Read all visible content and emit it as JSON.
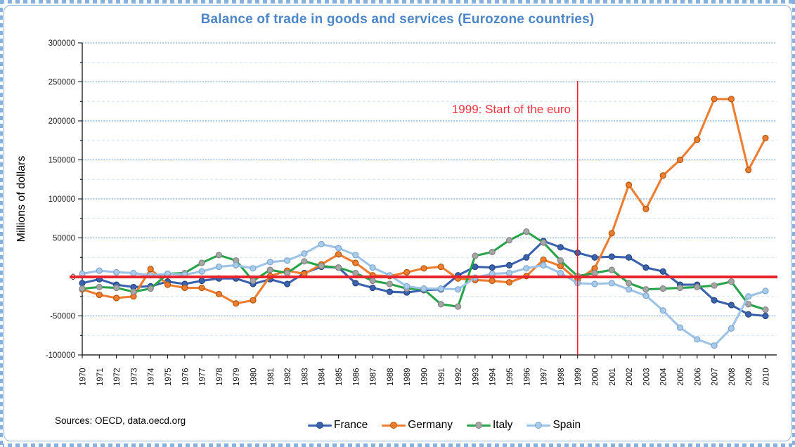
{
  "chart_data": {
    "type": "line",
    "title": "Balance of trade in goods and services (Eurozone countries)",
    "title_color": "#4d86c6",
    "ylabel": "Millions of dollars",
    "sources_note": "Sources: OECD, data.oecd.org",
    "legend_position": "bottom-center",
    "grid": "major and minor horizontal gridlines",
    "ylim": [
      -100000,
      300000
    ],
    "ytick_interval": 50000,
    "minor_ytick_interval": 25000,
    "x": [
      1970,
      1971,
      1972,
      1973,
      1974,
      1975,
      1976,
      1977,
      1978,
      1979,
      1980,
      1981,
      1982,
      1983,
      1984,
      1985,
      1986,
      1987,
      1988,
      1989,
      1990,
      1991,
      1992,
      1993,
      1994,
      1995,
      1996,
      1997,
      1998,
      1999,
      2000,
      2001,
      2002,
      2003,
      2004,
      2005,
      2006,
      2007,
      2008,
      2009,
      2010
    ],
    "series": [
      {
        "name": "France",
        "color": "#3a62ae",
        "marker_fill": "#3a62ae",
        "marker_stroke": "#27477f",
        "values": [
          -8000,
          -3000,
          -10000,
          -13000,
          -12000,
          -6000,
          -9000,
          -5000,
          -2000,
          -2000,
          -9000,
          -3000,
          -9000,
          5000,
          13000,
          12000,
          -8000,
          -14000,
          -19000,
          -20000,
          -17000,
          -16000,
          2000,
          13000,
          12000,
          15000,
          25000,
          46000,
          38000,
          31000,
          25000,
          26000,
          25000,
          12000,
          7000,
          -10000,
          -10000,
          -30000,
          -36000,
          -48000,
          -50000
        ]
      },
      {
        "name": "Germany",
        "color": "#ed7d31",
        "marker_fill": "#ed7d31",
        "marker_stroke": "#b65708",
        "values": [
          -16000,
          -23000,
          -27000,
          -25000,
          10000,
          -10000,
          -14000,
          -14000,
          -22000,
          -34000,
          -30000,
          1000,
          8000,
          4000,
          16000,
          29000,
          18000,
          2000,
          1000,
          6000,
          11000,
          13000,
          -2000,
          -4000,
          -5000,
          -7000,
          1000,
          22000,
          14000,
          -4000,
          11000,
          56000,
          118000,
          87000,
          130000,
          150000,
          176000,
          228000,
          228000,
          137000,
          178000
        ]
      },
      {
        "name": "Italy",
        "color": "#27a34a",
        "marker_fill": "#a6a6a6",
        "marker_stroke": "#858585",
        "values": [
          -15000,
          -13000,
          -14000,
          -19000,
          -15000,
          4000,
          5000,
          18000,
          28000,
          21000,
          -5000,
          9000,
          5000,
          20000,
          14000,
          12000,
          5000,
          -5000,
          -9000,
          -15000,
          -16000,
          -35000,
          -38000,
          27000,
          32000,
          47000,
          58000,
          44000,
          21000,
          1000,
          5000,
          9000,
          -8000,
          -16000,
          -15000,
          -14000,
          -13000,
          -11000,
          -6000,
          -35000,
          -42000
        ]
      },
      {
        "name": "Spain",
        "color": "#9dc3e6",
        "marker_fill": "#a8cbe9",
        "marker_stroke": "#7fa8d0",
        "values": [
          4000,
          8000,
          6000,
          5000,
          2000,
          4000,
          3000,
          7000,
          13000,
          15000,
          11000,
          19000,
          21000,
          30000,
          42000,
          37000,
          28000,
          12000,
          2000,
          -12000,
          -15000,
          -15000,
          -16000,
          -1000,
          4000,
          5000,
          11000,
          15000,
          5000,
          -8000,
          -9000,
          -8000,
          -16000,
          -24000,
          -43000,
          -65000,
          -80000,
          -88000,
          -66000,
          -25000,
          -18000
        ]
      }
    ],
    "zero_line": {
      "value": 0,
      "color": "#e8252c"
    },
    "event_line": {
      "x": 1999,
      "color": "#e8252c",
      "label": "1999: Start of the euro",
      "label_color": "#f5333f"
    }
  }
}
